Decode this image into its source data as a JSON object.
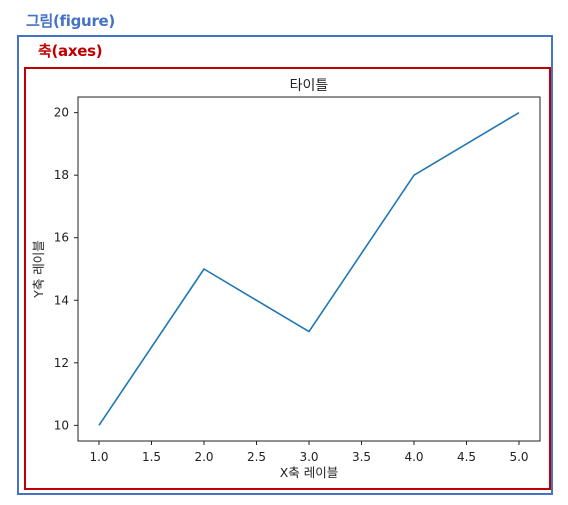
{
  "annotations": {
    "figure_label": "그림(figure)",
    "axes_label": "축(axes)",
    "figure_color": "#4472c4",
    "axes_color": "#c00000"
  },
  "chart_data": {
    "type": "line",
    "title": "타이틀",
    "xlabel": "X축 레이블",
    "ylabel": "Y축 레이블",
    "x": [
      1.0,
      2.0,
      3.0,
      4.0,
      5.0
    ],
    "series": [
      {
        "values": [
          10,
          15,
          13,
          18,
          20
        ],
        "color": "#1f77b4"
      }
    ],
    "xlim": [
      0.8,
      5.2
    ],
    "ylim": [
      9.5,
      20.5
    ],
    "xticks": [
      1.0,
      1.5,
      2.0,
      2.5,
      3.0,
      3.5,
      4.0,
      4.5,
      5.0
    ],
    "xtick_labels": [
      "1.0",
      "1.5",
      "2.0",
      "2.5",
      "3.0",
      "3.5",
      "4.0",
      "4.5",
      "5.0"
    ],
    "yticks": [
      10,
      12,
      14,
      16,
      18,
      20
    ],
    "ytick_labels": [
      "10",
      "12",
      "14",
      "16",
      "18",
      "20"
    ],
    "grid": false,
    "legend": "none"
  }
}
